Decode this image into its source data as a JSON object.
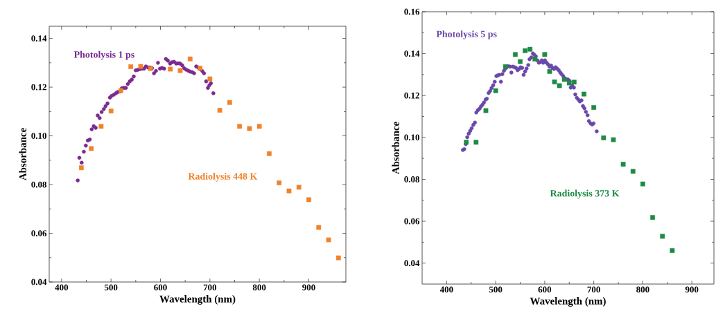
{
  "chart_data": [
    {
      "type": "scatter",
      "xlabel": "Wavelength (nm)",
      "ylabel": "Absorbance",
      "xlim": [
        375,
        975
      ],
      "ylim": [
        0.04,
        0.145
      ],
      "xticks": [
        400,
        500,
        600,
        700,
        800,
        900
      ],
      "yticks": [
        0.04,
        0.06,
        0.08,
        {
          "value": 0.1,
          "label": "0.10"
        },
        0.12,
        0.14
      ],
      "grid": false,
      "legend": false,
      "series": [
        {
          "name": "Photolysis 1 ps",
          "color": "#7b2a90",
          "marker": "circle",
          "x": [
            432.7,
            436,
            440.6,
            445,
            449,
            453,
            457,
            461,
            465,
            469,
            473,
            477,
            481,
            485.5,
            489,
            493,
            497.7,
            501,
            505.6,
            510,
            513.5,
            518,
            522,
            525.7,
            530,
            534,
            538,
            542,
            546,
            550,
            554,
            558,
            562.6,
            566.8,
            570.5,
            574.8,
            579,
            583,
            587,
            591,
            595,
            599,
            603,
            607.5,
            611,
            615,
            619.6,
            623,
            627.6,
            631.8,
            635.5,
            639.7,
            643.9,
            647.7,
            651.9,
            656,
            659.8,
            664,
            668,
            672.4,
            676,
            680.4,
            684.6,
            688,
            692.5,
            696,
            699,
            702,
            707
          ],
          "values": [
            0.0817,
            0.091,
            0.089,
            0.0935,
            0.096,
            0.0981,
            0.0985,
            0.1027,
            0.104,
            0.1033,
            0.1084,
            0.1073,
            0.1098,
            0.111,
            0.1122,
            0.1133,
            0.1157,
            0.1164,
            0.1169,
            0.1175,
            0.118,
            0.1182,
            0.1196,
            0.1197,
            0.1197,
            0.1213,
            0.1224,
            0.1231,
            0.1244,
            0.1269,
            0.1271,
            0.1274,
            0.1276,
            0.1276,
            0.1285,
            0.1281,
            0.1281,
            0.1278,
            0.1257,
            0.1267,
            0.13,
            0.1276,
            0.1279,
            0.1276,
            0.1316,
            0.1309,
            0.1297,
            0.1302,
            0.1304,
            0.1297,
            0.1298,
            0.1297,
            0.129,
            0.1278,
            0.1272,
            0.1268,
            0.1264,
            0.1262,
            0.1257,
            0.1285,
            0.1281,
            0.1274,
            0.1266,
            0.1257,
            0.1224,
            0.1197,
            0.1208,
            0.1216,
            0.1175
          ]
        },
        {
          "name": "Radiolysis 448 K",
          "color": "#f0832a",
          "marker": "square",
          "x": [
            440,
            460,
            480,
            500,
            520,
            540,
            560,
            580,
            620,
            640,
            660,
            680,
            700,
            720,
            740,
            760,
            780,
            800,
            820,
            840,
            860,
            880,
            900,
            920,
            940,
            960
          ],
          "values": [
            0.0869,
            0.0948,
            0.1039,
            0.1102,
            0.1186,
            0.1284,
            0.1285,
            0.1276,
            0.1274,
            0.1268,
            0.1316,
            0.1278,
            0.1234,
            0.1105,
            0.1137,
            0.1039,
            0.103,
            0.1039,
            0.0927,
            0.0807,
            0.0774,
            0.0789,
            0.0738,
            0.0624,
            0.0573,
            0.0499
          ]
        }
      ]
    },
    {
      "type": "scatter",
      "xlabel": "Wavelength (nm)",
      "ylabel": "Absorbance",
      "xlim": [
        350,
        945
      ],
      "ylim": [
        0.03,
        0.16
      ],
      "xticks": [
        400,
        500,
        600,
        700,
        800,
        900
      ],
      "yticks": [
        0.04,
        0.06,
        0.08,
        {
          "value": 0.1,
          "label": "0.10"
        },
        0.12,
        0.14,
        0.16
      ],
      "grid": false,
      "legend": false,
      "series": [
        {
          "name": "Photolysis 5 ps",
          "color": "#6a48aa",
          "marker": "circle",
          "x": [
            433,
            436,
            439,
            442,
            445,
            448,
            451,
            454.4,
            457.7,
            460.5,
            463.7,
            467,
            470,
            473,
            476,
            479.5,
            482,
            485.6,
            488.8,
            491.6,
            494.9,
            498,
            501.4,
            504,
            507.4,
            510.7,
            513.5,
            516.7,
            520,
            522.8,
            526,
            529.3,
            532,
            535,
            538.6,
            541.4,
            544.7,
            548,
            550.7,
            554,
            557,
            560,
            563,
            566.5,
            569,
            572.6,
            575.8,
            578.6,
            581.9,
            585,
            588,
            591,
            594,
            597,
            600.5,
            603.7,
            606.5,
            609.8,
            613,
            615.8,
            619,
            622,
            625,
            628.4,
            631.6,
            634.4,
            637.7,
            641,
            643.7,
            647,
            650.2,
            653,
            656,
            659.5,
            662.3,
            665.6,
            668.8,
            671.6,
            674.9,
            678,
            681,
            684,
            687.4,
            690,
            693.5,
            696.7,
            699.5,
            706
          ],
          "values": [
            0.094,
            0.0944,
            0.0968,
            0.1001,
            0.1018,
            0.1031,
            0.1044,
            0.106,
            0.1071,
            0.1119,
            0.113,
            0.1137,
            0.1148,
            0.1156,
            0.1167,
            0.1181,
            0.1185,
            0.1212,
            0.1222,
            0.1236,
            0.1249,
            0.1266,
            0.1293,
            0.1296,
            0.1299,
            0.1266,
            0.1302,
            0.1318,
            0.1329,
            0.1337,
            0.134,
            0.1338,
            0.131,
            0.1338,
            0.1335,
            0.1332,
            0.1321,
            0.1327,
            0.1335,
            0.1332,
            0.1299,
            0.1315,
            0.1329,
            0.1346,
            0.1373,
            0.1382,
            0.1401,
            0.1395,
            0.1387,
            0.1368,
            0.1357,
            0.1359,
            0.1368,
            0.1357,
            0.1368,
            0.1357,
            0.1349,
            0.1338,
            0.1343,
            0.1332,
            0.1327,
            0.1335,
            0.1329,
            0.1321,
            0.131,
            0.1302,
            0.1293,
            0.1282,
            0.1277,
            0.1277,
            0.1271,
            0.1238,
            0.1247,
            0.1238,
            0.1205,
            0.1189,
            0.118,
            0.1172,
            0.1177,
            0.115,
            0.1139,
            0.1122,
            0.1106,
            0.1078,
            0.1067,
            0.1062,
            0.1067,
            0.1029
          ]
        },
        {
          "name": "Radiolysis 373 K",
          "color": "#1e8a44",
          "marker": "square",
          "x": [
            440,
            460,
            480,
            500,
            520,
            540,
            550,
            560,
            570,
            580,
            600,
            610,
            620,
            630,
            640,
            650,
            660,
            680,
            700,
            720,
            740,
            760,
            780,
            800,
            820,
            840,
            860
          ],
          "values": [
            0.0977,
            0.0977,
            0.1128,
            0.1223,
            0.1338,
            0.1396,
            0.1362,
            0.1414,
            0.1421,
            0.1374,
            0.1396,
            0.1315,
            0.1265,
            0.1247,
            0.1277,
            0.126,
            0.1264,
            0.1207,
            0.1143,
            0.0998,
            0.0989,
            0.0872,
            0.0838,
            0.0778,
            0.0618,
            0.0528,
            0.046
          ]
        }
      ]
    }
  ]
}
